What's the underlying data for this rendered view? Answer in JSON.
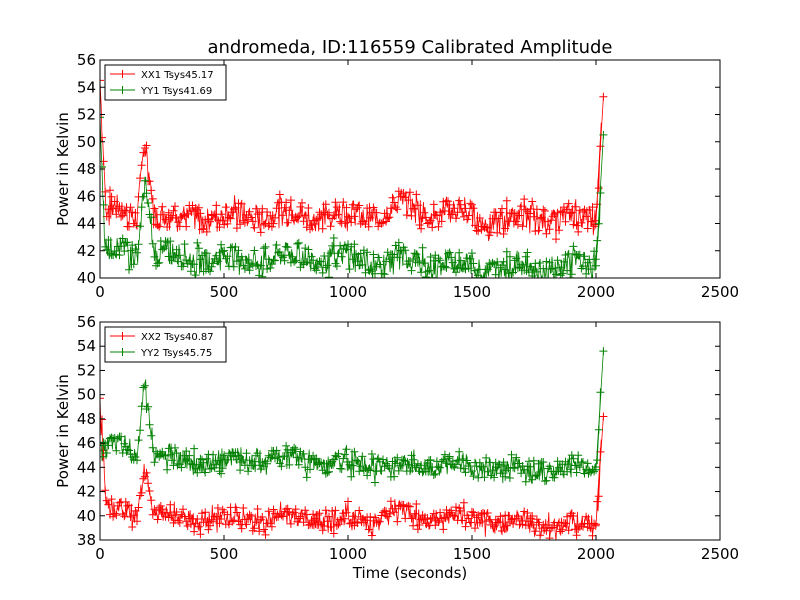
{
  "title": "andromeda, ID:116559 Calibrated Amplitude",
  "colors": {
    "xx": "#ff0000",
    "yy": "#008000"
  },
  "chart_data": [
    {
      "type": "line",
      "xlabel": "",
      "ylabel": "Power in Kelvin",
      "xlim": [
        0,
        2500
      ],
      "ylim": [
        40,
        56
      ],
      "xticks": [
        0,
        500,
        1000,
        1500,
        2000,
        2500
      ],
      "yticks": [
        40,
        42,
        44,
        46,
        48,
        50,
        52,
        54,
        56
      ],
      "legend_position": "top-left",
      "series": [
        {
          "name": "XX1 Tsys45.17",
          "color": "#ff0000",
          "band": 0.9,
          "x": [
            0,
            25,
            60,
            100,
            150,
            180,
            220,
            300,
            400,
            500,
            600,
            700,
            800,
            900,
            1000,
            1100,
            1150,
            1200,
            1250,
            1300,
            1350,
            1400,
            1450,
            1500,
            1550,
            1600,
            1700,
            1800,
            1900,
            1950,
            2000,
            2030
          ],
          "y": [
            54.5,
            44.6,
            45.0,
            44.8,
            44.5,
            50.5,
            44.5,
            44.4,
            44.5,
            44.5,
            44.6,
            44.7,
            44.6,
            44.6,
            44.6,
            44.6,
            44.9,
            45.3,
            45.2,
            45.0,
            44.9,
            44.8,
            44.7,
            44.5,
            44.3,
            44.2,
            44.3,
            44.5,
            44.4,
            44.3,
            44.2,
            53.3
          ]
        },
        {
          "name": "YY1 Tsys41.69",
          "color": "#008000",
          "band": 0.9,
          "x": [
            0,
            20,
            60,
            100,
            150,
            180,
            220,
            300,
            400,
            500,
            600,
            700,
            800,
            900,
            1000,
            1100,
            1200,
            1300,
            1400,
            1500,
            1600,
            1700,
            1800,
            1900,
            2000,
            2030
          ],
          "y": [
            51.8,
            42.3,
            42.0,
            41.9,
            41.8,
            47.3,
            41.8,
            41.6,
            41.5,
            41.4,
            41.4,
            41.5,
            41.6,
            41.5,
            41.4,
            41.3,
            41.2,
            41.1,
            41.0,
            40.9,
            40.8,
            40.8,
            40.8,
            40.9,
            40.9,
            50.5
          ]
        }
      ]
    },
    {
      "type": "line",
      "xlabel": "Time (seconds)",
      "ylabel": "Power in Kelvin",
      "xlim": [
        0,
        2500
      ],
      "ylim": [
        38,
        56
      ],
      "xticks": [
        0,
        500,
        1000,
        1500,
        2000,
        2500
      ],
      "yticks": [
        38,
        40,
        42,
        44,
        46,
        48,
        50,
        52,
        54,
        56
      ],
      "legend_position": "top-left",
      "series": [
        {
          "name": "XX2 Tsys40.87",
          "color": "#ff0000",
          "band": 0.8,
          "x": [
            0,
            25,
            60,
            100,
            150,
            180,
            220,
            300,
            400,
            500,
            600,
            700,
            800,
            900,
            1000,
            1100,
            1150,
            1200,
            1250,
            1300,
            1350,
            1400,
            1450,
            1500,
            1600,
            1700,
            1800,
            1900,
            2000,
            2030
          ],
          "y": [
            49.7,
            40.5,
            40.4,
            40.3,
            40.2,
            44.2,
            40.0,
            39.8,
            39.8,
            39.7,
            39.7,
            39.8,
            39.8,
            39.7,
            39.7,
            39.7,
            39.9,
            40.3,
            40.2,
            40.0,
            39.9,
            39.8,
            39.7,
            39.6,
            39.5,
            39.4,
            39.3,
            39.3,
            39.3,
            48.2
          ]
        },
        {
          "name": "YY2 Tsys45.75",
          "color": "#008000",
          "band": 0.8,
          "x": [
            0,
            20,
            60,
            100,
            150,
            180,
            220,
            300,
            400,
            500,
            600,
            700,
            800,
            900,
            1000,
            1100,
            1200,
            1300,
            1400,
            1500,
            1600,
            1700,
            1800,
            1900,
            2000,
            2030
          ],
          "y": [
            45.8,
            45.8,
            45.6,
            45.5,
            45.2,
            51.6,
            44.8,
            44.6,
            44.5,
            44.5,
            44.6,
            44.6,
            44.7,
            44.5,
            44.3,
            44.2,
            44.1,
            44.1,
            44.1,
            44.0,
            44.0,
            43.9,
            43.9,
            43.9,
            43.8,
            53.6
          ]
        }
      ]
    }
  ]
}
